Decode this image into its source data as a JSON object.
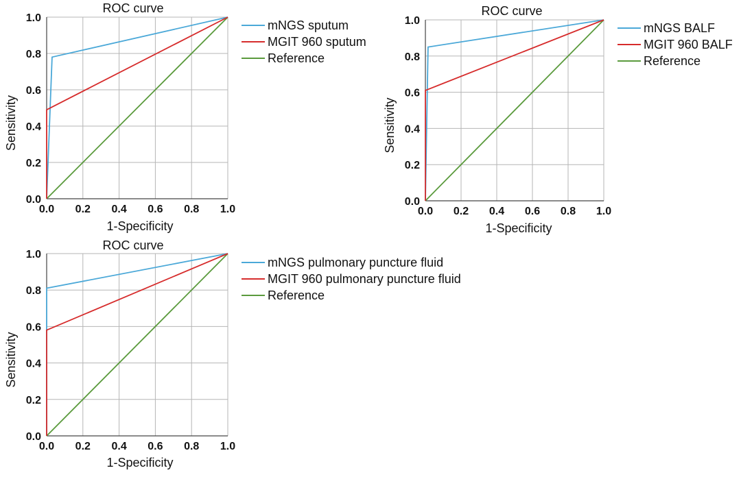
{
  "chart_data": [
    {
      "type": "line",
      "title": "ROC curve",
      "xlabel": "1-Specificity",
      "ylabel": "Sensitivity",
      "xlim": [
        0,
        1
      ],
      "ylim": [
        0,
        1
      ],
      "xticks": [
        "0.0",
        "0.2",
        "0.4",
        "0.6",
        "0.8",
        "1.0"
      ],
      "yticks": [
        "0.0",
        "0.2",
        "0.4",
        "0.6",
        "0.8",
        "1.0"
      ],
      "grid": true,
      "legend_position": "right",
      "series": [
        {
          "name": "mNGS sputum",
          "color": "#4aa8d8",
          "x": [
            0,
            0.03,
            1.0
          ],
          "y": [
            0,
            0.78,
            1.0
          ]
        },
        {
          "name": "MGIT 960 sputum",
          "color": "#d62b2b",
          "x": [
            0,
            0,
            1.0
          ],
          "y": [
            0,
            0.49,
            1.0
          ]
        },
        {
          "name": "Reference",
          "color": "#5a9a3c",
          "x": [
            0,
            1.0
          ],
          "y": [
            0,
            1.0
          ]
        }
      ]
    },
    {
      "type": "line",
      "title": "ROC curve",
      "xlabel": "1-Specificity",
      "ylabel": "Sensitivity",
      "xlim": [
        0,
        1
      ],
      "ylim": [
        0,
        1
      ],
      "xticks": [
        "0.0",
        "0.2",
        "0.4",
        "0.6",
        "0.8",
        "1.0"
      ],
      "yticks": [
        "0.0",
        "0.2",
        "0.4",
        "0.6",
        "0.8",
        "1.0"
      ],
      "grid": true,
      "legend_position": "right",
      "series": [
        {
          "name": "mNGS BALF",
          "color": "#4aa8d8",
          "x": [
            0,
            0.015,
            1.0
          ],
          "y": [
            0,
            0.85,
            1.0
          ]
        },
        {
          "name": "MGIT 960 BALF",
          "color": "#d62b2b",
          "x": [
            0,
            0,
            1.0
          ],
          "y": [
            0,
            0.61,
            1.0
          ]
        },
        {
          "name": "Reference",
          "color": "#5a9a3c",
          "x": [
            0,
            1.0
          ],
          "y": [
            0,
            1.0
          ]
        }
      ]
    },
    {
      "type": "line",
      "title": "ROC curve",
      "xlabel": "1-Specificity",
      "ylabel": "Sensitivity",
      "xlim": [
        0,
        1
      ],
      "ylim": [
        0,
        1
      ],
      "xticks": [
        "0.0",
        "0.2",
        "0.4",
        "0.6",
        "0.8",
        "1.0"
      ],
      "yticks": [
        "0.0",
        "0.2",
        "0.4",
        "0.6",
        "0.8",
        "1.0"
      ],
      "grid": true,
      "legend_position": "right",
      "series": [
        {
          "name": "mNGS pulmonary puncture fluid",
          "color": "#4aa8d8",
          "x": [
            0,
            0,
            1.0
          ],
          "y": [
            0,
            0.81,
            1.0
          ]
        },
        {
          "name": "MGIT 960 pulmonary puncture fluid",
          "color": "#d62b2b",
          "x": [
            0,
            0,
            1.0
          ],
          "y": [
            0,
            0.58,
            1.0
          ]
        },
        {
          "name": "Reference",
          "color": "#5a9a3c",
          "x": [
            0,
            1.0
          ],
          "y": [
            0,
            1.0
          ]
        }
      ]
    }
  ]
}
